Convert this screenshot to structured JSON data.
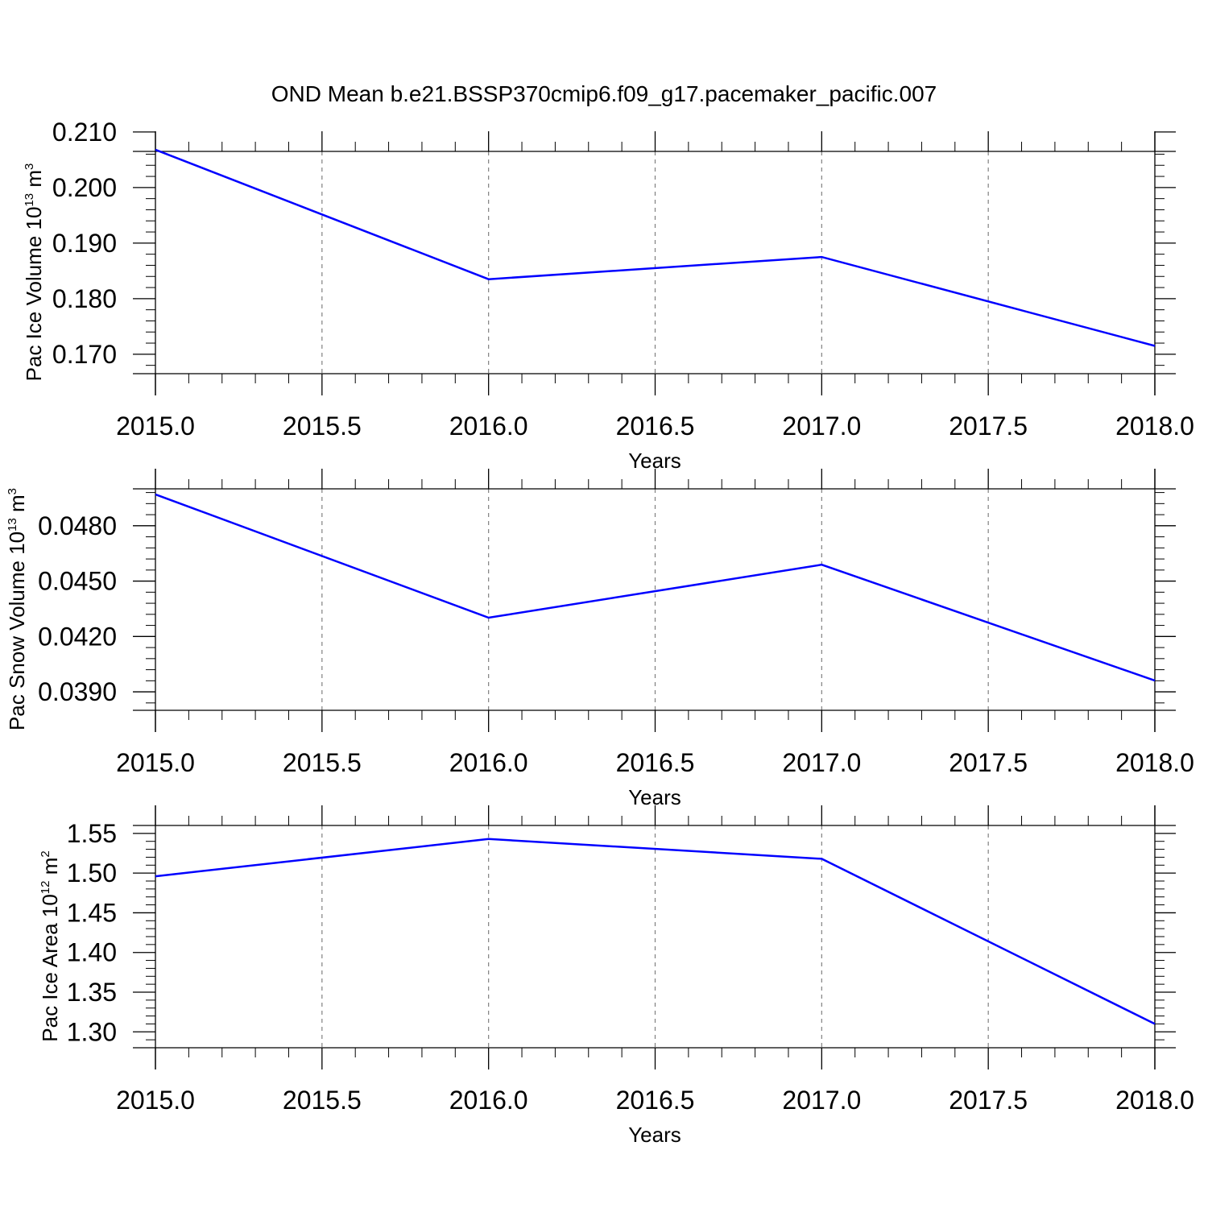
{
  "title": "OND Mean b.e21.BSSP370cmip6.f09_g17.pacemaker_pacific.007",
  "colors": {
    "line": "#0000ff",
    "axis": "#000000",
    "grid": "#808080"
  },
  "chart_data": [
    {
      "type": "line",
      "name": "ice-volume",
      "x": [
        2015,
        2016,
        2017,
        2018
      ],
      "series": [
        {
          "values": [
            0.2068,
            0.1835,
            0.1875,
            0.1715
          ]
        }
      ],
      "xlabel": "Years",
      "ylabel": {
        "text": "Pac Ice Volume 10",
        "sup": "13",
        "unit": " m",
        "unit_sup": "3"
      },
      "xlim": [
        2015,
        2018
      ],
      "ylim": [
        0.1665,
        0.2065
      ],
      "xticks": [
        "2015.0",
        "2015.5",
        "2016.0",
        "2016.5",
        "2017.0",
        "2017.5",
        "2018.0"
      ],
      "yticks": [
        "0.170",
        "0.180",
        "0.190",
        "0.200",
        "0.210"
      ],
      "ytick_values": [
        0.17,
        0.18,
        0.19,
        0.2,
        0.21
      ],
      "grid": "vertical dashed"
    },
    {
      "type": "line",
      "name": "snow-volume",
      "x": [
        2015,
        2016,
        2017,
        2018
      ],
      "series": [
        {
          "values": [
            0.0497,
            0.04302,
            0.04589,
            0.03961
          ]
        }
      ],
      "xlabel": "Years",
      "ylabel": {
        "text": "Pac Snow Volume 10",
        "sup": "13",
        "unit": " m",
        "unit_sup": "3"
      },
      "xlim": [
        2015,
        2018
      ],
      "ylim": [
        0.038,
        0.05
      ],
      "xticks": [
        "2015.0",
        "2015.5",
        "2016.0",
        "2016.5",
        "2017.0",
        "2017.5",
        "2018.0"
      ],
      "yticks": [
        "0.0390",
        "0.0420",
        "0.0450",
        "0.0480"
      ],
      "ytick_values": [
        0.039,
        0.042,
        0.045,
        0.048
      ],
      "grid": "vertical dashed"
    },
    {
      "type": "line",
      "name": "ice-area",
      "x": [
        2015,
        2016,
        2017,
        2018
      ],
      "series": [
        {
          "values": [
            1.496,
            1.543,
            1.518,
            1.31
          ]
        }
      ],
      "xlabel": "Years",
      "ylabel": {
        "text": "Pac Ice Area 10",
        "sup": "12",
        "unit": " m",
        "unit_sup": "2"
      },
      "xlim": [
        2015,
        2018
      ],
      "ylim": [
        1.28,
        1.56
      ],
      "xticks": [
        "2015.0",
        "2015.5",
        "2016.0",
        "2016.5",
        "2017.0",
        "2017.5",
        "2018.0"
      ],
      "yticks": [
        "1.30",
        "1.35",
        "1.40",
        "1.45",
        "1.50",
        "1.55"
      ],
      "ytick_values": [
        1.3,
        1.35,
        1.4,
        1.45,
        1.5,
        1.55
      ],
      "grid": "vertical dashed"
    }
  ]
}
